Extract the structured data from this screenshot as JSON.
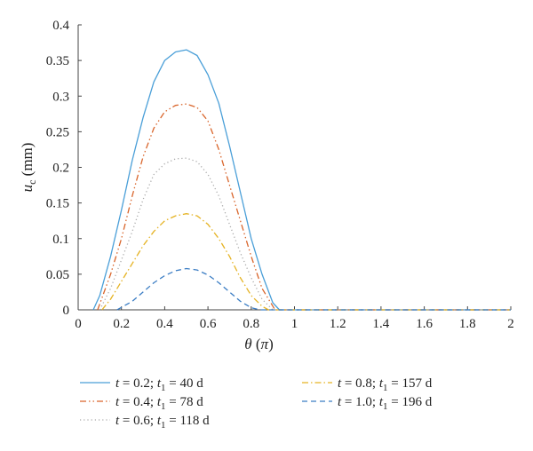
{
  "chart_data": {
    "type": "line",
    "xlabel": "θ (π)",
    "ylabel": "u_c (mm)",
    "xlim": [
      0,
      2
    ],
    "ylim": [
      0,
      0.4
    ],
    "grid": false,
    "legend_placement": "bottom",
    "x_ticks": [
      "0",
      "0.2",
      "0.4",
      "0.6",
      "0.8",
      "1",
      "1.2",
      "1.4",
      "1.6",
      "1.8",
      "2"
    ],
    "y_ticks": [
      "0",
      "0.05",
      "0.1",
      "0.15",
      "0.2",
      "0.25",
      "0.3",
      "0.35",
      "0.4"
    ],
    "series": [
      {
        "name": "t = 0.2; t1 = 40 d",
        "t_text": "0.2",
        "t1_text": "40 d",
        "color": "#4a9fd8",
        "dash": "solid",
        "x": [
          0.07,
          0.1,
          0.15,
          0.2,
          0.25,
          0.3,
          0.35,
          0.4,
          0.45,
          0.5,
          0.55,
          0.6,
          0.65,
          0.7,
          0.75,
          0.8,
          0.85,
          0.9,
          0.93,
          1.0,
          1.2,
          1.4,
          1.6,
          1.8,
          2.0
        ],
        "y": [
          0.0,
          0.02,
          0.075,
          0.14,
          0.21,
          0.27,
          0.32,
          0.35,
          0.362,
          0.365,
          0.357,
          0.33,
          0.29,
          0.23,
          0.165,
          0.1,
          0.05,
          0.01,
          0.0,
          0.0,
          0.0,
          0.0,
          0.0,
          0.0,
          0.0
        ]
      },
      {
        "name": "t = 0.4; t1 = 78 d",
        "t_text": "0.4",
        "t1_text": "78 d",
        "color": "#d9652b",
        "dash": "dash-dot-dot",
        "x": [
          0.09,
          0.15,
          0.2,
          0.25,
          0.3,
          0.35,
          0.4,
          0.45,
          0.5,
          0.55,
          0.6,
          0.65,
          0.7,
          0.75,
          0.8,
          0.85,
          0.91,
          1.0,
          1.2,
          1.4,
          1.6,
          1.8,
          2.0
        ],
        "y": [
          0.0,
          0.05,
          0.1,
          0.16,
          0.215,
          0.255,
          0.278,
          0.287,
          0.289,
          0.284,
          0.265,
          0.225,
          0.175,
          0.125,
          0.075,
          0.03,
          0.0,
          0.0,
          0.0,
          0.0,
          0.0,
          0.0,
          0.0
        ]
      },
      {
        "name": "t = 0.6; t1 = 118 d",
        "t_text": "0.6",
        "t1_text": "118 d",
        "color": "#a9a9a9",
        "dash": "dotted",
        "x": [
          0.1,
          0.15,
          0.2,
          0.25,
          0.3,
          0.35,
          0.4,
          0.45,
          0.5,
          0.55,
          0.6,
          0.65,
          0.7,
          0.75,
          0.8,
          0.85,
          0.9,
          1.0,
          1.2,
          1.4,
          1.6,
          1.8,
          2.0
        ],
        "y": [
          0.0,
          0.03,
          0.07,
          0.11,
          0.155,
          0.19,
          0.205,
          0.212,
          0.213,
          0.208,
          0.19,
          0.16,
          0.12,
          0.08,
          0.045,
          0.015,
          0.0,
          0.0,
          0.0,
          0.0,
          0.0,
          0.0,
          0.0
        ]
      },
      {
        "name": "t = 0.8; t1 = 157 d",
        "t_text": "0.8",
        "t1_text": "157 d",
        "color": "#e5b324",
        "dash": "dash-dot",
        "x": [
          0.11,
          0.15,
          0.2,
          0.25,
          0.3,
          0.35,
          0.4,
          0.45,
          0.5,
          0.55,
          0.6,
          0.65,
          0.7,
          0.75,
          0.8,
          0.85,
          0.88,
          1.0,
          1.2,
          1.4,
          1.6,
          1.8,
          2.0
        ],
        "y": [
          0.0,
          0.015,
          0.04,
          0.065,
          0.09,
          0.11,
          0.125,
          0.132,
          0.135,
          0.132,
          0.12,
          0.1,
          0.075,
          0.045,
          0.02,
          0.005,
          0.0,
          0.0,
          0.0,
          0.0,
          0.0,
          0.0,
          0.0
        ]
      },
      {
        "name": "t = 1.0; t1 = 196 d",
        "t_text": "1.0",
        "t1_text": "196 d",
        "color": "#3b7dc4",
        "dash": "dashed",
        "x": [
          0.18,
          0.25,
          0.3,
          0.35,
          0.4,
          0.45,
          0.5,
          0.55,
          0.6,
          0.65,
          0.7,
          0.75,
          0.8,
          0.84,
          1.0,
          1.2,
          1.4,
          1.6,
          1.8,
          2.0
        ],
        "y": [
          0.0,
          0.012,
          0.025,
          0.038,
          0.048,
          0.055,
          0.058,
          0.056,
          0.049,
          0.038,
          0.025,
          0.012,
          0.003,
          0.0,
          0.0,
          0.0,
          0.0,
          0.0,
          0.0,
          0.0
        ]
      }
    ]
  }
}
